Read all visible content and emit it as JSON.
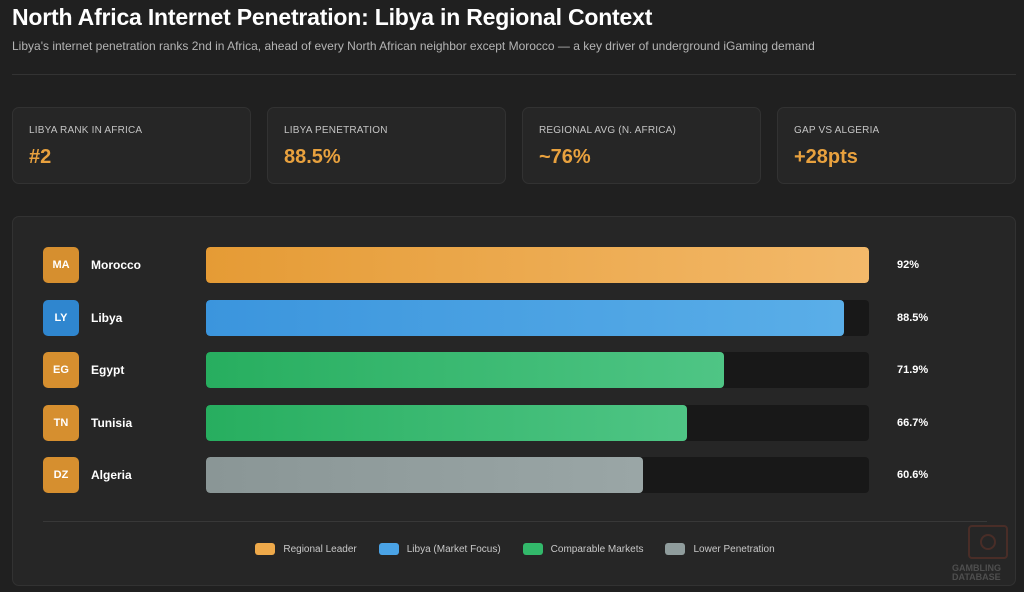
{
  "header": {
    "title": "North Africa Internet Penetration: Libya in Regional Context",
    "subtitle": "Libya's internet penetration ranks 2nd in Africa, ahead of every North African neighbor except Morocco — a key driver of underground iGaming demand"
  },
  "stats": [
    {
      "label": "LIBYA RANK IN AFRICA",
      "value": "#2",
      "color": "#e8a13e"
    },
    {
      "label": "LIBYA PENETRATION",
      "value": "88.5%",
      "color": "#e8a13e"
    },
    {
      "label": "REGIONAL AVG (N. AFRICA)",
      "value": "~76%",
      "color": "#e8a13e"
    },
    {
      "label": "GAP VS ALGERIA",
      "value": "+28pts",
      "color": "#e8a13e"
    }
  ],
  "chart_data": {
    "type": "bar",
    "orientation": "horizontal",
    "xlim": [
      0,
      100
    ],
    "unit": "%",
    "categories": [
      "Morocco",
      "Libya",
      "Egypt",
      "Tunisia",
      "Algeria"
    ],
    "codes": [
      "MA",
      "LY",
      "EG",
      "TN",
      "DZ"
    ],
    "values": [
      92,
      88.5,
      71.9,
      66.7,
      60.6
    ],
    "labels": [
      "92%",
      "88.5%",
      "71.9%",
      "66.7%",
      "60.6%"
    ],
    "groups": [
      "leader",
      "focus",
      "comparable",
      "comparable",
      "lower"
    ],
    "legend": [
      {
        "key": "leader",
        "label": "Regional Leader",
        "color": "#eea94a"
      },
      {
        "key": "focus",
        "label": "Libya (Market Focus)",
        "color": "#4aa3e6"
      },
      {
        "key": "comparable",
        "label": "Comparable Markets",
        "color": "#32b86a"
      },
      {
        "key": "lower",
        "label": "Lower Penetration",
        "color": "#8f9c9c"
      }
    ],
    "legend_position": "bottom-center",
    "colors": {
      "leader": [
        "#e59b35",
        "#f3b96a"
      ],
      "focus": [
        "#3b95dd",
        "#5aaee8"
      ],
      "comparable": [
        "#27ae5f",
        "#4fc585"
      ],
      "lower": [
        "#8a9696",
        "#9aa6a6"
      ]
    },
    "badge_colors": {
      "leader": "#d68f2f",
      "focus": "#2f86cf",
      "comparable": "#d68f2f",
      "lower": "#d68f2f"
    }
  },
  "watermark": {
    "text": "GAMBLING DATABASE"
  }
}
